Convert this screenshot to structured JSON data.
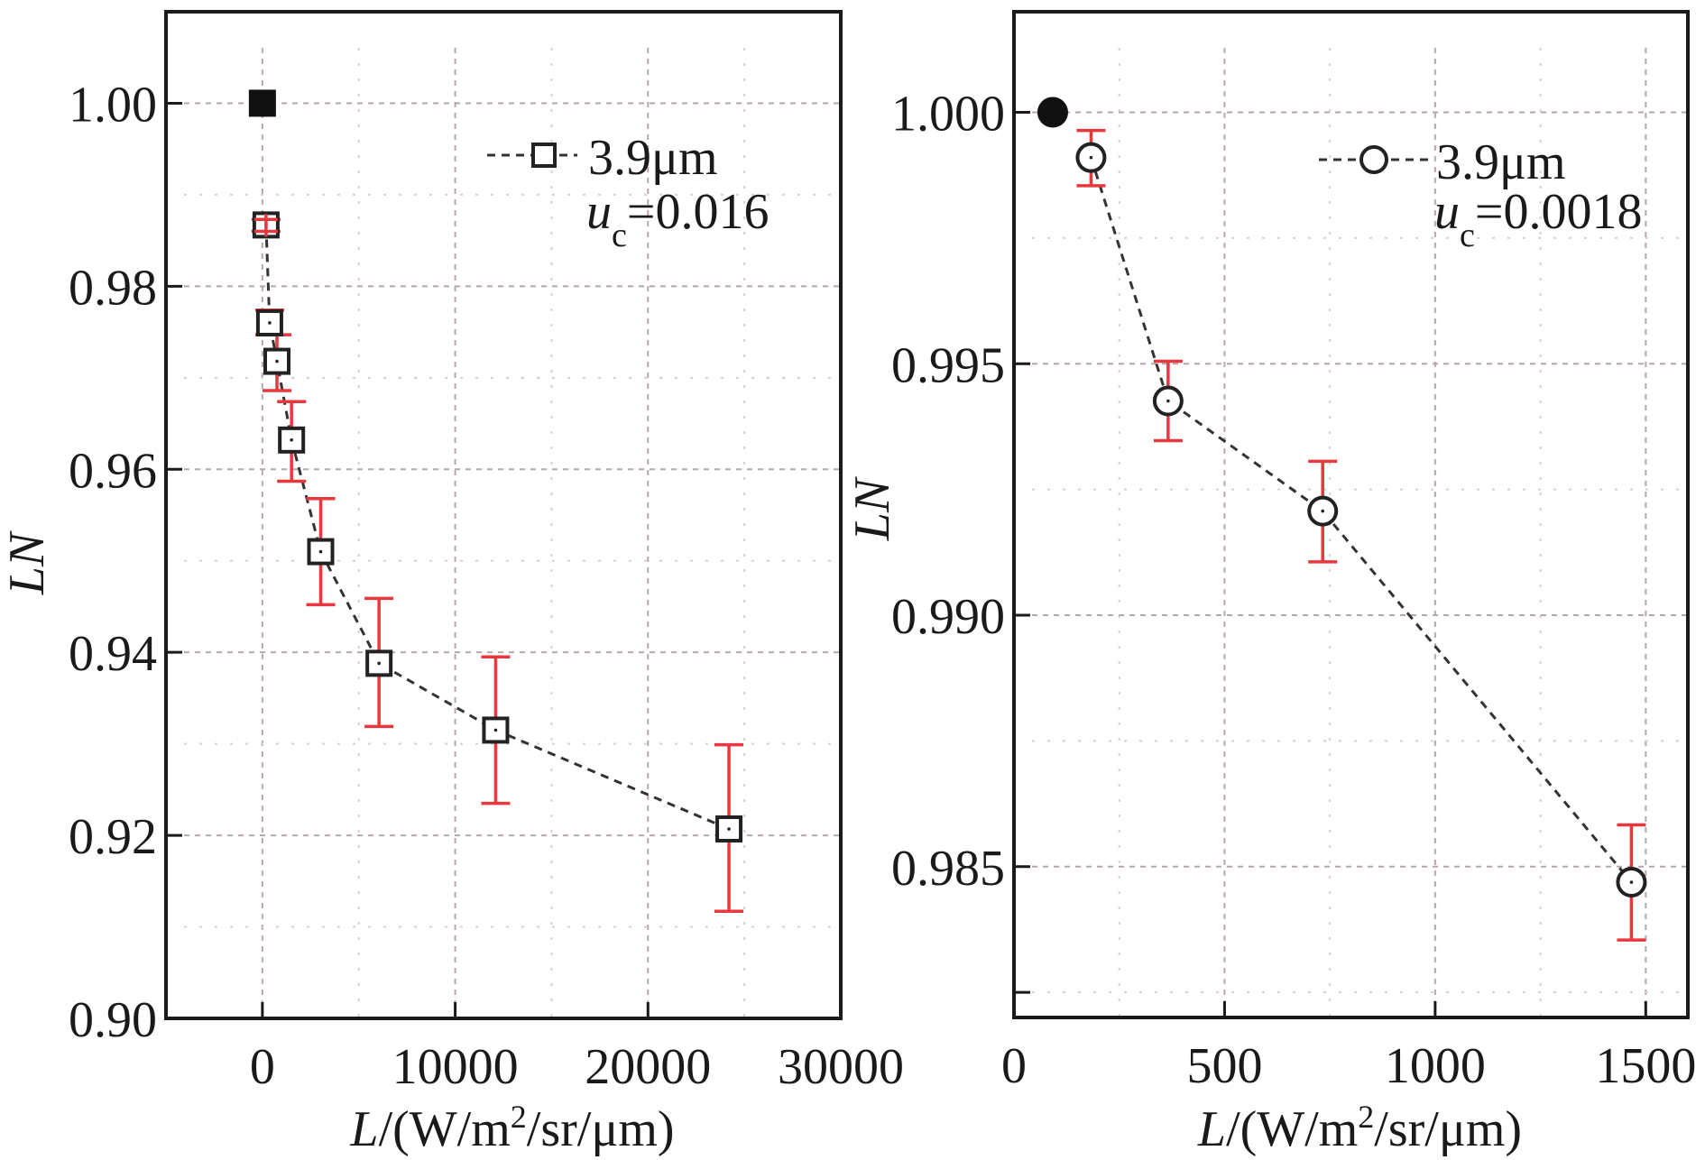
{
  "chart_data": [
    {
      "type": "scatter",
      "panel": "left",
      "xlabel_italic": "L",
      "xlabel_rest": "/(W/m",
      "xlabel_sup": "2",
      "xlabel_tail": "/sr/μm)",
      "ylabel": "LN",
      "xlim": [
        -5000,
        30000
      ],
      "ylim": [
        0.9,
        1.01
      ],
      "xticks": [
        0,
        10000,
        20000,
        30000
      ],
      "xtick_labels": [
        "0",
        "10000",
        "20000",
        "30000"
      ],
      "xminor": [
        5000,
        15000,
        25000
      ],
      "yticks": [
        0.9,
        0.92,
        0.94,
        0.96,
        0.98,
        1.0
      ],
      "ytick_labels": [
        "0.90",
        "0.92",
        "0.94",
        "0.96",
        "0.98",
        "1.00"
      ],
      "yminor": [
        0.91,
        0.93,
        0.95,
        0.97,
        0.99
      ],
      "grid": true,
      "marker": "square",
      "reference_point": {
        "x": 0,
        "y": 1.0
      },
      "series": [
        {
          "name": "3.9μm",
          "x": [
            189,
            378,
            756,
            1512,
            3025,
            6050,
            12100,
            24200
          ],
          "y": [
            0.9867,
            0.976,
            0.9718,
            0.9632,
            0.951,
            0.9388,
            0.9315,
            0.9207
          ],
          "err_low": [
            0.986,
            0.9747,
            0.9686,
            0.9587,
            0.9452,
            0.9319,
            0.9235,
            0.9117
          ],
          "err_high": [
            0.9873,
            0.9774,
            0.9747,
            0.9674,
            0.9568,
            0.9459,
            0.9395,
            0.9299
          ]
        }
      ],
      "legend": {
        "label": "3.9μm",
        "uc_symbol": "u",
        "uc_sub": "c",
        "uc_value": "=0.016",
        "placement": "top-right"
      }
    },
    {
      "type": "scatter",
      "panel": "right",
      "xlabel_italic": "L",
      "xlabel_rest": "/(W/m",
      "xlabel_sup": "2",
      "xlabel_tail": "/sr/μm)",
      "ylabel": "LN",
      "xlim": [
        0,
        1600
      ],
      "ylim": [
        0.982,
        1.002
      ],
      "xticks": [
        0,
        500,
        1000,
        1500
      ],
      "xtick_labels": [
        "0",
        "500",
        "1000",
        "1500"
      ],
      "xminor": [
        250,
        750,
        1250
      ],
      "yticks": [
        0.985,
        0.99,
        0.995,
        1.0
      ],
      "ytick_labels": [
        "0.985",
        "0.990",
        "0.995",
        "1.000"
      ],
      "yminor": [
        0.9825,
        0.9875,
        0.9925,
        0.9975
      ],
      "grid": true,
      "marker": "circle",
      "reference_point": {
        "x": 92,
        "y": 1.0
      },
      "series": [
        {
          "name": "3.9μm",
          "x": [
            183,
            366,
            733,
            1466
          ],
          "y": [
            0.9991,
            0.99426,
            0.99207,
            0.98469
          ],
          "err_low": [
            0.99854,
            0.99347,
            0.99106,
            0.98354
          ],
          "err_high": [
            0.99964,
            0.99505,
            0.99306,
            0.98583
          ]
        }
      ],
      "legend": {
        "label": "3.9μm",
        "uc_symbol": "u",
        "uc_sub": "c",
        "uc_value": "=0.0018",
        "placement": "top-right"
      }
    }
  ]
}
